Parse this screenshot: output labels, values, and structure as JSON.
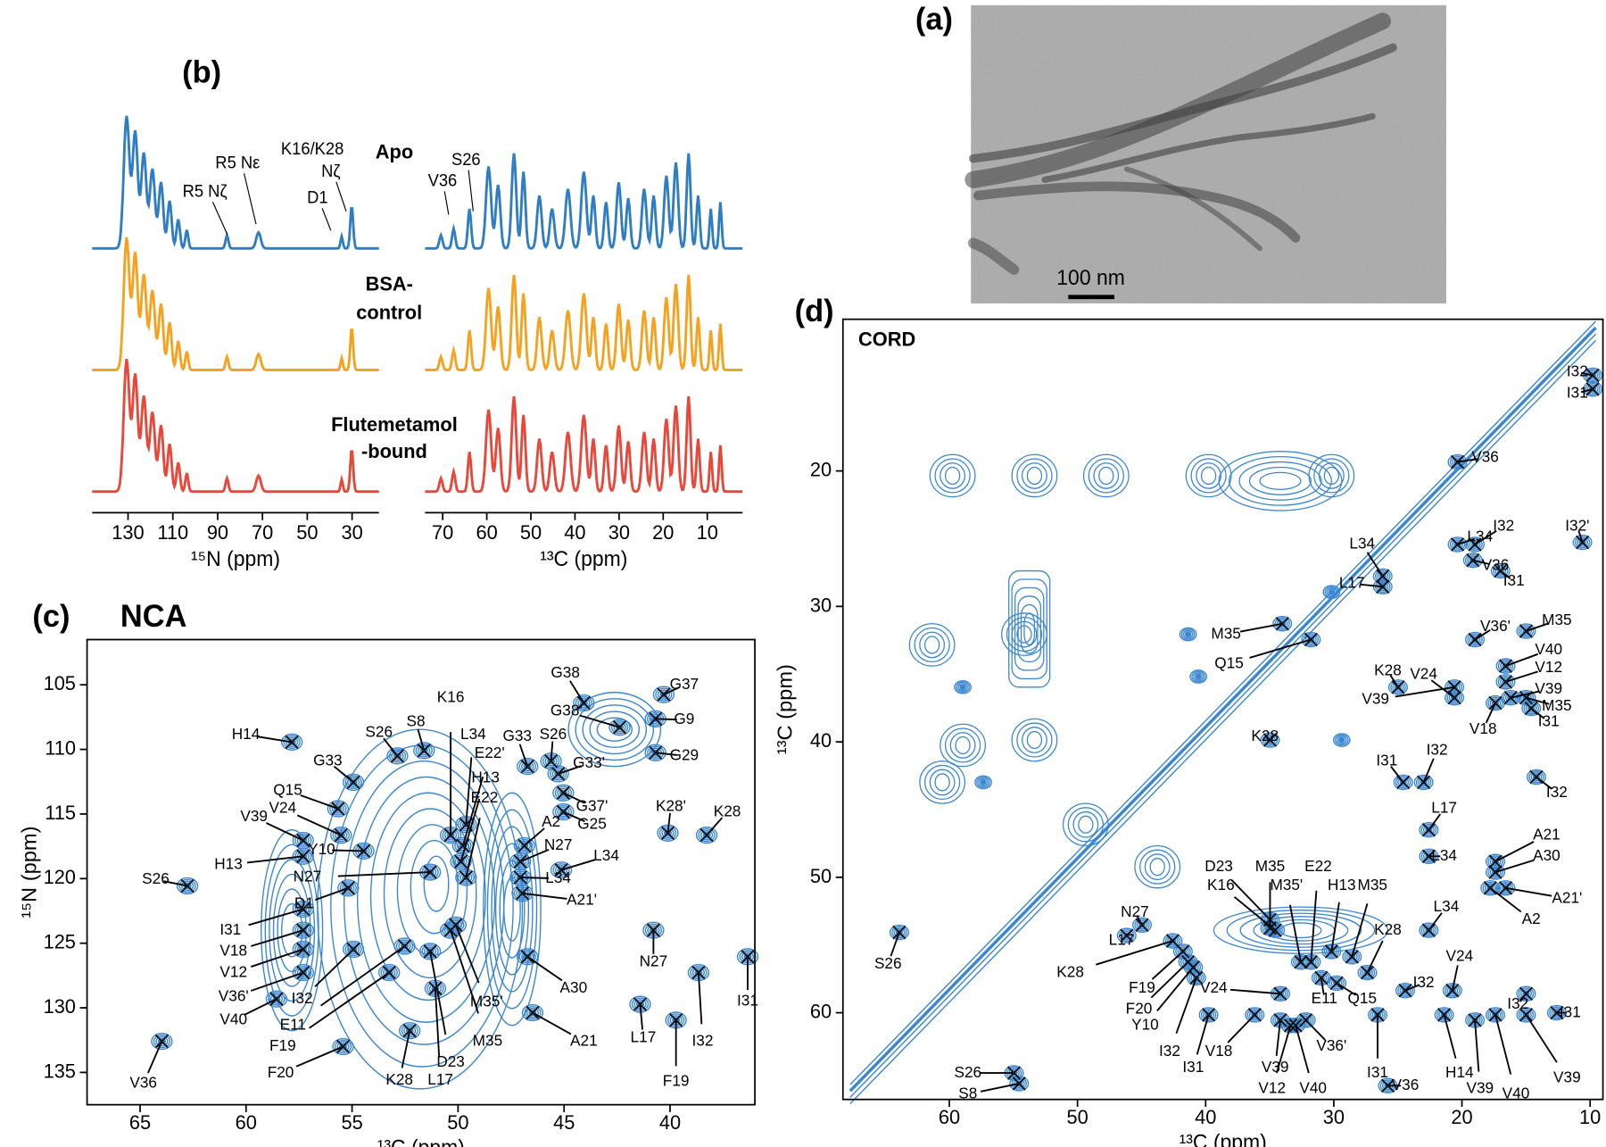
{
  "panel_a": {
    "label": "(a)",
    "scale_bar": "100 nm"
  },
  "panel_b": {
    "label": "(b)",
    "samples": [
      {
        "name": [
          "Apo"
        ],
        "color": "#2f7dc2"
      },
      {
        "name": [
          "BSA-",
          "control"
        ],
        "color": "#f5a21f"
      },
      {
        "name": [
          "Flutemetamol",
          "-bound"
        ],
        "color": "#e8473a"
      }
    ],
    "annotations": [
      "R5 Nζ",
      "R5 Nε",
      "K16/K28",
      "Nζ",
      "D1",
      "S26",
      "V36"
    ],
    "n15_axis": {
      "title": "¹⁵N (ppm)",
      "xlim": [
        146,
        18
      ],
      "xticks": [
        130,
        110,
        90,
        70,
        50,
        30
      ]
    },
    "c13_axis": {
      "title": "¹³C (ppm)",
      "xlim": [
        74,
        2
      ],
      "xticks": [
        70,
        60,
        50,
        40,
        30,
        20,
        10
      ]
    }
  },
  "panel_c": {
    "label": "(c)",
    "title": "NCA",
    "x_title": "¹³C (ppm)",
    "y_title": "¹⁵N (ppm)",
    "color": "#3a86d1",
    "xlim": [
      67.5,
      36
    ],
    "xticks": [
      65,
      60,
      55,
      50,
      45,
      40
    ],
    "ylim": [
      101.5,
      137.5
    ],
    "yticks": [
      105,
      110,
      115,
      120,
      125,
      130,
      135
    ],
    "peak_labels": [
      "G38",
      "G37",
      "G38'",
      "G9",
      "S26",
      "S8",
      "K16",
      "H14",
      "G33",
      "S26",
      "G29",
      "L34",
      "G33",
      "E22'",
      "Q15",
      "G33'",
      "V24",
      "H13",
      "G37'",
      "E22",
      "G25",
      "K28'",
      "K28",
      "V39",
      "A2",
      "Y10",
      "N27",
      "H13",
      "L34",
      "L34",
      "N27",
      "D1",
      "S26",
      "I31",
      "A21'",
      "V18",
      "N27",
      "V12",
      "A30",
      "V36'",
      "I32",
      "M35'",
      "L17",
      "I32",
      "V40",
      "I31",
      "E11",
      "A21",
      "F19",
      "M35",
      "D23",
      "F20",
      "K28",
      "L17",
      "F19",
      "V36"
    ]
  },
  "panel_d": {
    "label": "(d)",
    "title": "CORD",
    "x_title": "¹³C (ppm)",
    "y_title": "¹³C (ppm)",
    "color": "#3a86d1",
    "xlim": [
      68.3,
      9
    ],
    "xticks": [
      60,
      50,
      40,
      30,
      20,
      10
    ],
    "ylim": [
      8.8,
      66.4
    ],
    "yticks": [
      20,
      30,
      40,
      50,
      60
    ],
    "peak_labels": [
      "I32",
      "I31",
      "V36",
      "I32",
      "I32'",
      "L34",
      "L34",
      "L17",
      "V36",
      "I31",
      "M35",
      "M35",
      "V36'",
      "K28",
      "V24",
      "V40",
      "Q15",
      "V12",
      "V39",
      "V39",
      "M35",
      "V18",
      "I31",
      "K28",
      "I31",
      "I32",
      "I32",
      "L17",
      "A21",
      "L34",
      "A30",
      "E22",
      "D23",
      "K16",
      "M35",
      "M35'",
      "H13",
      "M35",
      "A21'",
      "A2",
      "N27",
      "L34",
      "K28",
      "L17",
      "K28",
      "F19",
      "I32",
      "V24",
      "F20",
      "V24",
      "E11",
      "Q15",
      "I32",
      "Y10",
      "I32",
      "S26",
      "I31",
      "V18",
      "V39",
      "V12",
      "V40",
      "V36'",
      "I31",
      "H14",
      "V39",
      "V40",
      "V39",
      "I31",
      "S26",
      "S8",
      "V36"
    ]
  }
}
